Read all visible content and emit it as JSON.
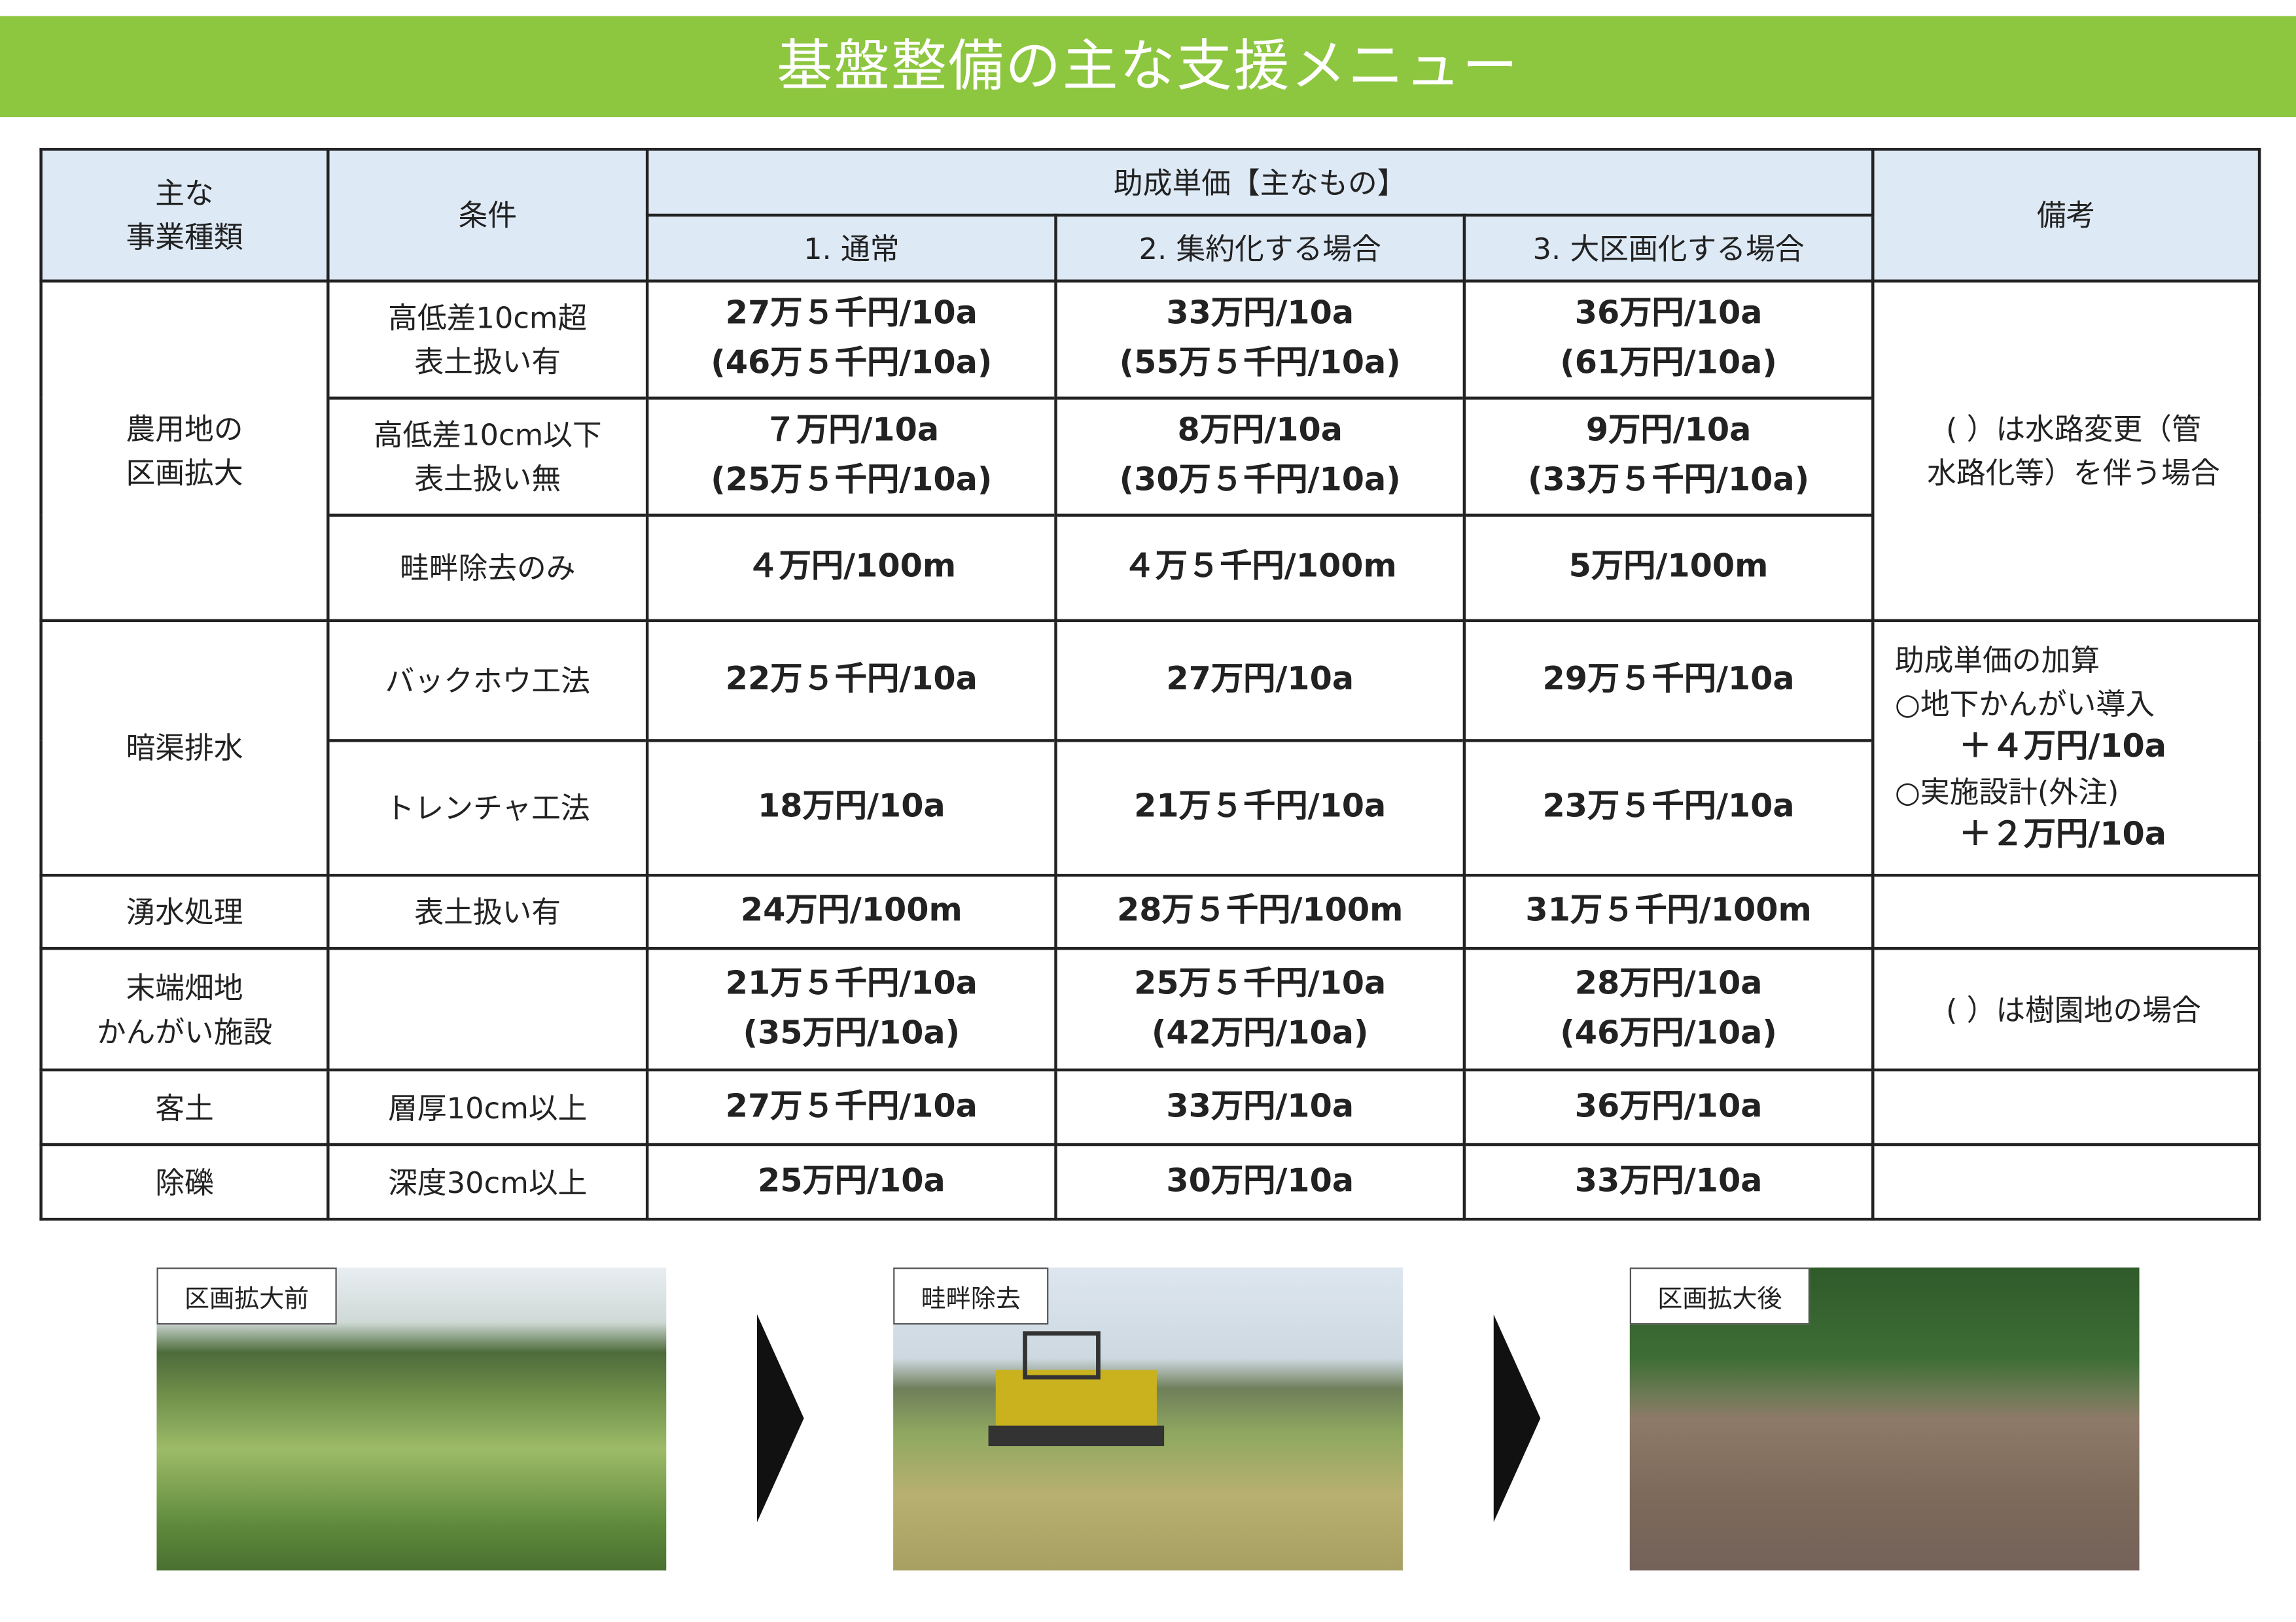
{
  "header": {
    "title": "基盤整備の主な支援メニュー"
  },
  "table": {
    "head": {
      "type": "主な\n事業種類",
      "condition": "条件",
      "price": "助成単価【主なもの】",
      "columns": [
        "1. 通常",
        "2. 集約化する場合",
        "3. 大区画化する場合"
      ],
      "note": "備考"
    },
    "rows": [
      {
        "type": "農用地の\n区画拡大",
        "condition": "高低差10cm超\n表土扱い有",
        "prices": [
          "27万５千円/10a\n(46万５千円/10a)",
          "33万円/10a\n(55万５千円/10a)",
          "36万円/10a\n(61万円/10a)"
        ],
        "note": [
          "( ）は水路変更（管\n水路化等）を伴う場合"
        ]
      },
      {
        "condition": "高低差10cm以下\n表土扱い無",
        "prices": [
          "７万円/10a\n(25万５千円/10a)",
          "8万円/10a\n(30万５千円/10a)",
          "9万円/10a\n(33万５千円/10a)"
        ]
      },
      {
        "condition": "畦畔除去のみ",
        "prices": [
          "４万円/100m",
          "４万５千円/100m",
          "5万円/100m"
        ]
      },
      {
        "type": "暗渠排水",
        "condition": "バックホウ工法",
        "prices": [
          "22万５千円/10a",
          "27万円/10a",
          "29万５千円/10a"
        ],
        "note": [
          "助成単価の加算",
          "○地下かんがい導入",
          "＋４万円/10a",
          "○実施設計(外注)",
          "＋２万円/10a"
        ]
      },
      {
        "condition": "トレンチャ工法",
        "prices": [
          "18万円/10a",
          "21万５千円/10a",
          "23万５千円/10a"
        ]
      },
      {
        "type": "湧水処理",
        "condition": "表土扱い有",
        "prices": [
          "24万円/100m",
          "28万５千円/100m",
          "31万５千円/100m"
        ]
      },
      {
        "type": "末端畑地\nかんがい施設",
        "prices": [
          "21万５千円/10a\n(35万円/10a)",
          "25万５千円/10a\n(42万円/10a)",
          "28万円/10a\n(46万円/10a)"
        ],
        "note": [
          "( ）は樹園地の場合"
        ]
      },
      {
        "type": "客土",
        "condition": "層厚10cm以上",
        "prices": [
          "27万５千円/10a",
          "33万円/10a",
          "36万円/10a"
        ]
      },
      {
        "type": "除礫",
        "condition": "深度30cm以上",
        "prices": [
          "25万円/10a",
          "30万円/10a",
          "33万円/10a"
        ]
      }
    ]
  },
  "photos": [
    {
      "label": "区画拡大前"
    },
    {
      "label": "畦畔除去"
    },
    {
      "label": "区画拡大後"
    }
  ]
}
